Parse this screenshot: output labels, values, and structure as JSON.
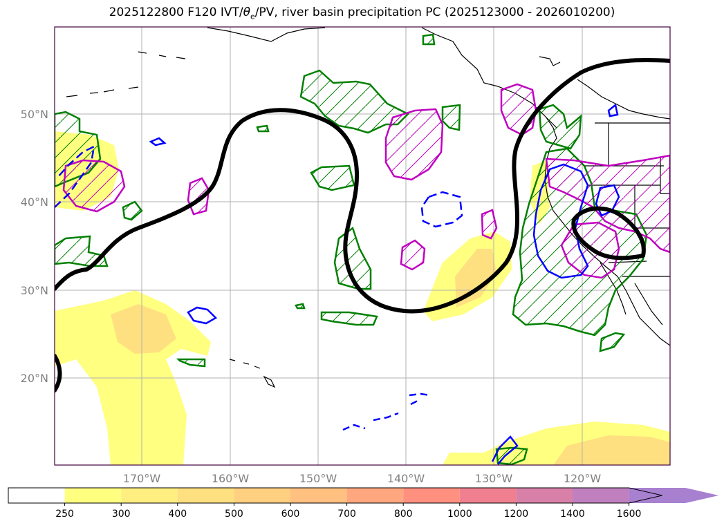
{
  "title": "2025122800 F120 IVT/θe/PV, river basin precipitation PC (2025123000 - 2026010200)",
  "title_parts": {
    "prefix": "2025122800 F120 IVT/",
    "theta": "θ",
    "sub": "e",
    "suffix": "/PV, river basin precipitation PC (2025123000 - 2026010200)"
  },
  "lat_labels": [
    "50°N",
    "40°N",
    "30°N",
    "20°N"
  ],
  "lon_labels": [
    "170°W",
    "160°W",
    "150°W",
    "140°W",
    "130°W",
    "120°W"
  ],
  "colorbar": {
    "ticks": [
      "250",
      "300",
      "400",
      "500",
      "600",
      "700",
      "800",
      "1000",
      "1200",
      "1400",
      "1600"
    ],
    "colors": [
      "#ffff80",
      "#ffef80",
      "#ffe080",
      "#ffd080",
      "#ffc080",
      "#ffa880",
      "#ff9080",
      "#f08090",
      "#d880a8",
      "#c080c0",
      "#a880d0"
    ],
    "extend": "max"
  },
  "colors": {
    "ivt_low": "#ffff80",
    "ivt_mid": "#ffe080",
    "pv_contour": "#000000",
    "green_contour": "#008000",
    "magenta_contour": "#c000c0",
    "blue_contour": "#0000ff",
    "grid": "#b0b0b0"
  }
}
